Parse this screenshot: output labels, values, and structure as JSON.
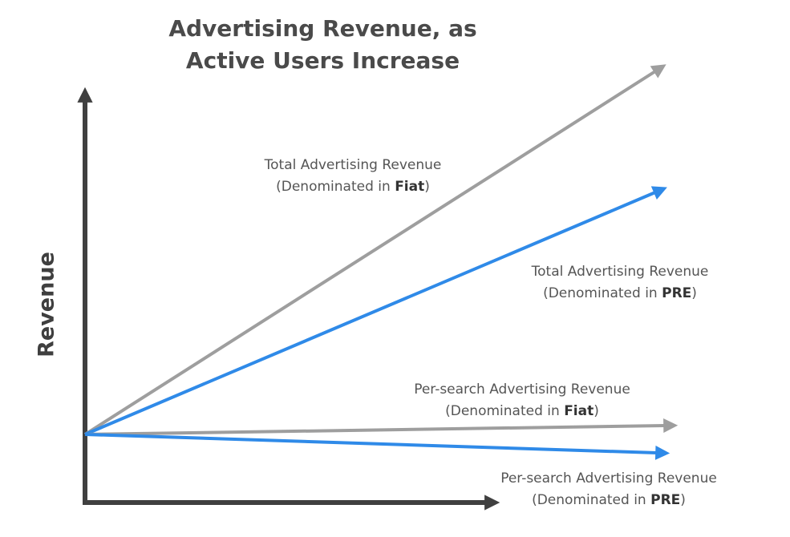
{
  "title": {
    "line1": "Advertising Revenue, as",
    "line2": "Active Users Increase"
  },
  "axes": {
    "ylabel": "Revenue"
  },
  "labels": {
    "total_fiat": {
      "line1": "Total Advertising Revenue",
      "prefix": "(Denominated in ",
      "bold": "Fiat",
      "suffix": ")"
    },
    "total_pre": {
      "line1": "Total Advertising Revenue",
      "prefix": "(Denominated in ",
      "bold": "PRE",
      "suffix": ")"
    },
    "search_fiat": {
      "line1": "Per-search Advertising Revenue",
      "prefix": "(Denominated in ",
      "bold": "Fiat",
      "suffix": ")"
    },
    "search_pre": {
      "line1": "Per-search Advertising Revenue",
      "prefix": "(Denominated in ",
      "bold": "PRE",
      "suffix": ")"
    }
  },
  "colors": {
    "fiat": "#9e9e9e",
    "pre": "#2f8ae8",
    "axis": "#404040"
  }
}
